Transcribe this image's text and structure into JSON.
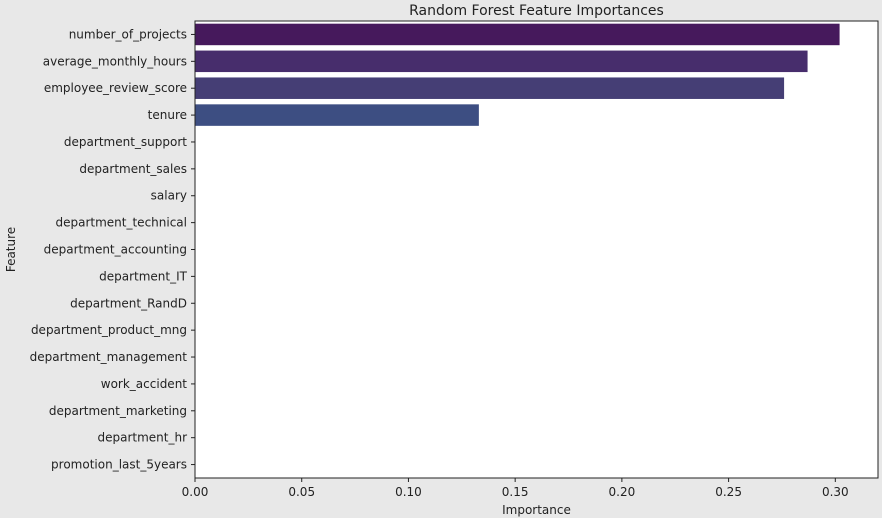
{
  "chart_data": {
    "type": "bar",
    "orientation": "horizontal",
    "title": "Random Forest Feature Importances",
    "xlabel": "Importance",
    "ylabel": "Feature",
    "xlim": [
      0.0,
      0.32
    ],
    "xticks": [
      0.0,
      0.05,
      0.1,
      0.15,
      0.2,
      0.25,
      0.3
    ],
    "xtick_labels": [
      "0.00",
      "0.05",
      "0.10",
      "0.15",
      "0.20",
      "0.25",
      "0.30"
    ],
    "categories": [
      "number_of_projects",
      "average_monthly_hours",
      "employee_review_score",
      "tenure",
      "department_support",
      "department_sales",
      "salary",
      "department_technical",
      "department_accounting",
      "department_IT",
      "department_RandD",
      "department_product_mng",
      "department_management",
      "work_accident",
      "department_marketing",
      "department_hr",
      "promotion_last_5years"
    ],
    "values": [
      0.302,
      0.287,
      0.276,
      0.133,
      0.0,
      0.0,
      0.0,
      0.0,
      0.0,
      0.0,
      0.0,
      0.0,
      0.0,
      0.0,
      0.0,
      0.0,
      0.0
    ],
    "colors": [
      "#46195c",
      "#472d6c",
      "#453e75",
      "#3d4e82",
      "#37578a",
      "#31688e",
      "#2c728e",
      "#277f8e",
      "#22908d",
      "#1fa088",
      "#25ac82",
      "#3cbb75",
      "#5ac864",
      "#7ad151",
      "#a0da39",
      "#c8e020",
      "#ece51b"
    ],
    "grid": false,
    "legend": "none"
  }
}
